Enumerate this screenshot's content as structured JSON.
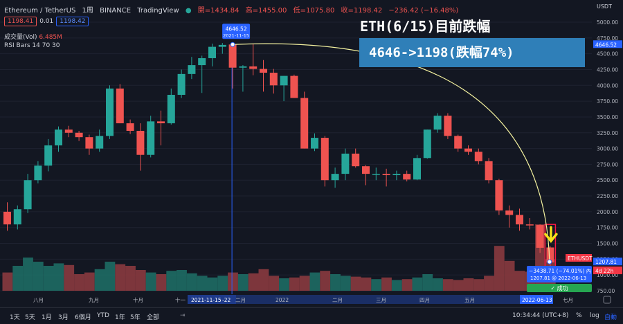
{
  "header": {
    "symbol": "Ethereum / TetherUS",
    "interval": "1周",
    "exchange": "BINANCE",
    "platform": "TradingView",
    "open_label": "開=1434.84",
    "high_label": "高=1455.00",
    "low_label": "低=1075.80",
    "close_label": "收=1198.42",
    "change_label": "−236.42 (−16.48%)"
  },
  "price_boxes": {
    "bid": "1198.41",
    "spread": "0.01",
    "ask": "1198.42"
  },
  "indicators": {
    "volume": "成交量(Vol)",
    "volume_value": "6.485M",
    "rsi": "RSI Bars 14 70 30"
  },
  "annotation": {
    "title": "ETH(6/15)目前跌幅",
    "subtitle": "4646->1198(跌幅74%)"
  },
  "peak_label": {
    "price": "4646.52",
    "date": "2021-11-15"
  },
  "measure_label": {
    "line1": "−3438.71 (−74.01%) 內",
    "line2": "1207.81 @ 2022-06-13"
  },
  "success_label": "✓ 成功",
  "right_axis": {
    "currency": "USDT",
    "ticks": [
      "5000.00",
      "4750.00",
      "4500.00",
      "4250.00",
      "4000.00",
      "3750.00",
      "3500.00",
      "3250.00",
      "3000.00",
      "2750.00",
      "2500.00",
      "2250.00",
      "2000.00",
      "1750.00",
      "1500.00",
      "1250.00",
      "1000.00",
      "750.00"
    ],
    "markers": [
      {
        "text": "4646.52",
        "color": "#2962ff"
      },
      {
        "text": "1207.81",
        "color": "#2962ff"
      },
      {
        "text": "ETHUSDT",
        "color": "#f23645"
      },
      {
        "text": "1198.42",
        "color": "#f23645"
      },
      {
        "text": "4d 22h",
        "color": "#f23645"
      }
    ]
  },
  "x_axis": {
    "labels": [
      "八月",
      "九月",
      "十月",
      "十一",
      "2021-11-15",
      "-22",
      "二月",
      "2022",
      "二月",
      "三月",
      "四月",
      "五月",
      "2022-06-13",
      "七月"
    ]
  },
  "bottombar": {
    "timeframes": [
      "1天",
      "5天",
      "1月",
      "3月",
      "6個月",
      "YTD",
      "1年",
      "5年",
      "全部"
    ],
    "time": "10:34:44 (UTC+8)",
    "percent": "%",
    "log": "log",
    "auto": "自動"
  },
  "colors": {
    "up": "#26a69a",
    "down": "#ef5350",
    "bg": "#131722",
    "curve": "#f5f3a0",
    "arrow": "#f5e21a"
  },
  "chart_data": {
    "type": "candlestick",
    "interval": "1W",
    "y_axis": {
      "min": 750,
      "max": 5000,
      "scale": "linear",
      "position": "right"
    },
    "candles": [
      {
        "o": 2000,
        "h": 2150,
        "l": 1700,
        "c": 1800
      },
      {
        "o": 1800,
        "h": 2100,
        "l": 1720,
        "c": 2040
      },
      {
        "o": 2040,
        "h": 2600,
        "l": 1980,
        "c": 2500
      },
      {
        "o": 2500,
        "h": 2800,
        "l": 2450,
        "c": 2730
      },
      {
        "o": 2730,
        "h": 3150,
        "l": 2640,
        "c": 3050
      },
      {
        "o": 3050,
        "h": 3350,
        "l": 2950,
        "c": 3300
      },
      {
        "o": 3300,
        "h": 3360,
        "l": 3180,
        "c": 3250
      },
      {
        "o": 3250,
        "h": 3280,
        "l": 3120,
        "c": 3180
      },
      {
        "o": 3180,
        "h": 3220,
        "l": 2900,
        "c": 3000
      },
      {
        "o": 3000,
        "h": 3300,
        "l": 2950,
        "c": 3200
      },
      {
        "o": 3200,
        "h": 4000,
        "l": 3150,
        "c": 3950
      },
      {
        "o": 3950,
        "h": 4020,
        "l": 3400,
        "c": 3400
      },
      {
        "o": 3400,
        "h": 3460,
        "l": 3230,
        "c": 3280
      },
      {
        "o": 3280,
        "h": 3400,
        "l": 2650,
        "c": 2900
      },
      {
        "o": 2900,
        "h": 3520,
        "l": 2860,
        "c": 3430
      },
      {
        "o": 3430,
        "h": 3600,
        "l": 3050,
        "c": 3400
      },
      {
        "o": 3400,
        "h": 3950,
        "l": 3380,
        "c": 3850
      },
      {
        "o": 3850,
        "h": 4250,
        "l": 3800,
        "c": 4180
      },
      {
        "o": 4180,
        "h": 4450,
        "l": 4100,
        "c": 4320
      },
      {
        "o": 4320,
        "h": 4470,
        "l": 3880,
        "c": 4430
      },
      {
        "o": 4430,
        "h": 4660,
        "l": 4300,
        "c": 4610
      },
      {
        "o": 4610,
        "h": 4670,
        "l": 4500,
        "c": 4640
      },
      {
        "o": 4646,
        "h": 4670,
        "l": 3950,
        "c": 4280
      },
      {
        "o": 4280,
        "h": 4320,
        "l": 3900,
        "c": 4300
      },
      {
        "o": 4300,
        "h": 4650,
        "l": 4160,
        "c": 4260
      },
      {
        "o": 4260,
        "h": 4400,
        "l": 3900,
        "c": 4200
      },
      {
        "o": 4200,
        "h": 4260,
        "l": 3870,
        "c": 4000
      },
      {
        "o": 4000,
        "h": 4150,
        "l": 3750,
        "c": 4150
      },
      {
        "o": 4150,
        "h": 4170,
        "l": 3800,
        "c": 3800
      },
      {
        "o": 3800,
        "h": 3900,
        "l": 3000,
        "c": 3000
      },
      {
        "o": 3000,
        "h": 3240,
        "l": 2960,
        "c": 3170
      },
      {
        "o": 3170,
        "h": 3200,
        "l": 2400,
        "c": 2500
      },
      {
        "o": 2500,
        "h": 2700,
        "l": 2380,
        "c": 2600
      },
      {
        "o": 2600,
        "h": 3000,
        "l": 2500,
        "c": 2920
      },
      {
        "o": 2920,
        "h": 3000,
        "l": 2700,
        "c": 2720
      },
      {
        "o": 2720,
        "h": 2740,
        "l": 2420,
        "c": 2600
      },
      {
        "o": 2600,
        "h": 2700,
        "l": 2500,
        "c": 2600
      },
      {
        "o": 2600,
        "h": 2680,
        "l": 2400,
        "c": 2580
      },
      {
        "o": 2580,
        "h": 2650,
        "l": 2500,
        "c": 2600
      },
      {
        "o": 2600,
        "h": 2650,
        "l": 2480,
        "c": 2510
      },
      {
        "o": 2510,
        "h": 2900,
        "l": 2500,
        "c": 2850
      },
      {
        "o": 2850,
        "h": 3300,
        "l": 2840,
        "c": 3300
      },
      {
        "o": 3300,
        "h": 3560,
        "l": 3250,
        "c": 3520
      },
      {
        "o": 3520,
        "h": 3560,
        "l": 3150,
        "c": 3200
      },
      {
        "o": 3200,
        "h": 3220,
        "l": 2950,
        "c": 3000
      },
      {
        "o": 3000,
        "h": 3050,
        "l": 2900,
        "c": 2950
      },
      {
        "o": 2950,
        "h": 3000,
        "l": 2750,
        "c": 2800
      },
      {
        "o": 2800,
        "h": 2850,
        "l": 2450,
        "c": 2500
      },
      {
        "o": 2500,
        "h": 2520,
        "l": 1950,
        "c": 2020
      },
      {
        "o": 2020,
        "h": 2100,
        "l": 1750,
        "c": 1950
      },
      {
        "o": 1950,
        "h": 2050,
        "l": 1700,
        "c": 1800
      },
      {
        "o": 1800,
        "h": 1900,
        "l": 1720,
        "c": 1790
      },
      {
        "o": 1790,
        "h": 1800,
        "l": 1350,
        "c": 1430
      },
      {
        "o": 1435,
        "h": 1455,
        "l": 1076,
        "c": 1198
      }
    ],
    "volume": [
      0.22,
      0.3,
      0.4,
      0.35,
      0.3,
      0.33,
      0.31,
      0.2,
      0.22,
      0.26,
      0.35,
      0.32,
      0.3,
      0.25,
      0.22,
      0.2,
      0.24,
      0.25,
      0.21,
      0.18,
      0.16,
      0.18,
      0.22,
      0.2,
      0.21,
      0.26,
      0.18,
      0.15,
      0.16,
      0.18,
      0.22,
      0.24,
      0.2,
      0.18,
      0.17,
      0.16,
      0.14,
      0.16,
      0.13,
      0.14,
      0.16,
      0.2,
      0.15,
      0.14,
      0.13,
      0.15,
      0.14,
      0.18,
      0.54,
      0.36,
      0.24,
      0.23,
      0.8,
      0.38
    ],
    "peak": {
      "price": 4646.52,
      "date": "2021-11-15"
    },
    "measurement": {
      "change": -3438.71,
      "change_pct": -74.01,
      "to_price": 1207.81,
      "to_date": "2022-06-13"
    },
    "last_price": 1198.42
  }
}
